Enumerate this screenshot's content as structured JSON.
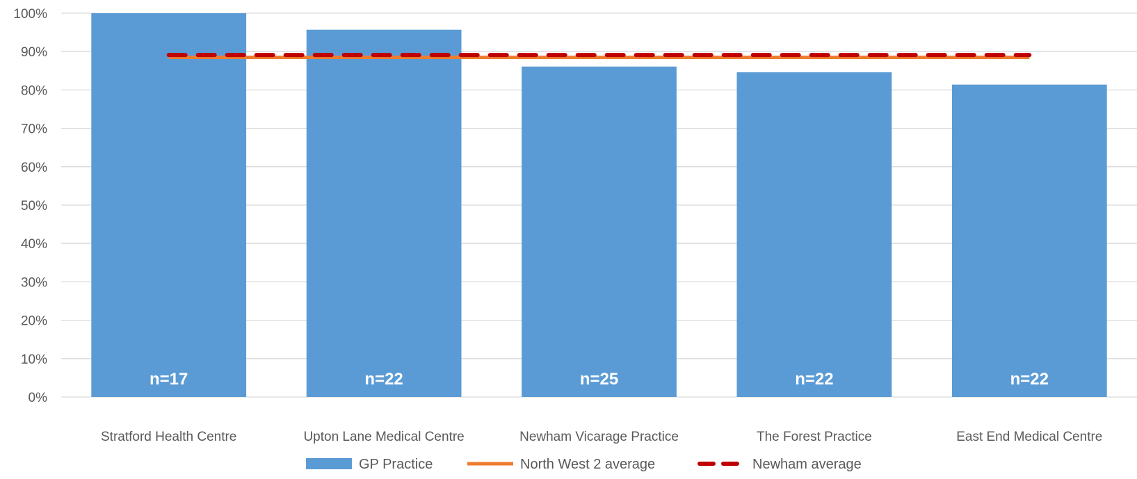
{
  "chart_data": {
    "type": "bar",
    "categories": [
      "Stratford Health Centre",
      "Upton Lane Medical Centre",
      "Newham Vicarage Practice",
      "The Forest Practice",
      "East End Medical Centre"
    ],
    "series": [
      {
        "name": "GP Practice",
        "type": "bar",
        "values": [
          100,
          95.7,
          86.1,
          84.6,
          81.4
        ],
        "color": "#5b9bd5"
      },
      {
        "name": "North West 2 average",
        "type": "line",
        "values": [
          88.5,
          88.5,
          88.5,
          88.5,
          88.5
        ],
        "color": "#ed7d31"
      },
      {
        "name": "Newham average",
        "type": "line-dashed",
        "values": [
          89.1,
          89.1,
          89.1,
          89.1,
          89.1
        ],
        "color": "#c00000"
      }
    ],
    "bar_labels": [
      "n=17",
      "n=22",
      "n=25",
      "n=22",
      "n=22"
    ],
    "ylim": [
      0,
      100
    ],
    "yticks": [
      0,
      10,
      20,
      30,
      40,
      50,
      60,
      70,
      80,
      90,
      100
    ],
    "ytick_labels": [
      "0%",
      "10%",
      "20%",
      "30%",
      "40%",
      "50%",
      "60%",
      "70%",
      "80%",
      "90%",
      "100%"
    ],
    "title": "",
    "xlabel": "",
    "ylabel": "",
    "grid": true,
    "legend_position": "bottom"
  }
}
